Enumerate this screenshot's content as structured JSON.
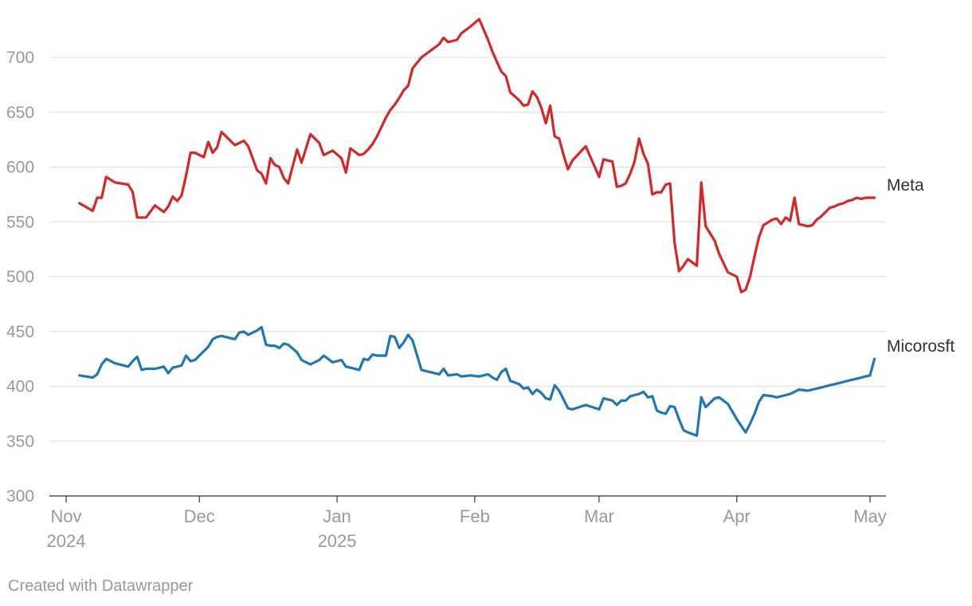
{
  "chart_data": {
    "type": "line",
    "title": "",
    "xlabel": "",
    "ylabel": "",
    "ylim": [
      300,
      740
    ],
    "xlim": [
      0,
      181
    ],
    "yticks": [
      700,
      650,
      600,
      550,
      500,
      450,
      400,
      350,
      300
    ],
    "xticks": [
      {
        "x": 0,
        "label": "Nov",
        "sublabel": "2024"
      },
      {
        "x": 30,
        "label": "Dec",
        "sublabel": ""
      },
      {
        "x": 61,
        "label": "Jan",
        "sublabel": "2025"
      },
      {
        "x": 92,
        "label": "Feb",
        "sublabel": ""
      },
      {
        "x": 120,
        "label": "Mar",
        "sublabel": ""
      },
      {
        "x": 151,
        "label": "Apr",
        "sublabel": ""
      },
      {
        "x": 181,
        "label": "May",
        "sublabel": ""
      }
    ],
    "grid": true,
    "legend": "direct labels at right end of lines",
    "series": [
      {
        "name": "Meta",
        "color": "#d62728",
        "x": [
          3,
          6,
          7,
          8,
          9,
          11,
          14,
          15,
          16,
          17,
          18,
          20,
          22,
          23,
          24,
          25,
          26,
          27,
          28,
          29,
          31,
          32,
          33,
          34,
          35,
          38,
          39,
          40,
          41,
          43,
          44,
          45,
          46,
          47,
          48,
          49,
          50,
          52,
          53,
          55,
          57,
          58,
          60,
          62,
          63,
          64,
          66,
          67,
          68,
          69,
          70,
          72,
          73,
          74,
          75,
          76,
          77,
          78,
          80,
          84,
          85,
          86,
          88,
          89,
          91,
          93,
          95,
          96,
          97,
          98,
          99,
          100,
          102,
          103,
          104,
          105,
          106,
          107,
          108,
          109,
          110,
          111,
          112,
          113,
          114,
          117,
          120,
          121,
          122,
          123,
          124,
          125,
          126,
          127,
          128,
          129,
          130,
          131,
          132,
          133,
          134,
          135,
          136,
          137,
          138,
          139,
          140,
          142,
          143,
          144,
          146,
          147,
          149,
          151,
          152,
          153,
          154,
          155,
          156,
          157,
          159,
          160,
          161,
          162,
          163,
          164,
          165,
          167,
          168,
          169,
          170,
          171,
          172,
          173,
          174,
          175,
          176,
          177,
          178,
          179,
          180,
          181,
          182
        ],
        "values": [
          567,
          560,
          572,
          572,
          591,
          586,
          584,
          577,
          554,
          554,
          554,
          565,
          559,
          564,
          573,
          569,
          574,
          592,
          613,
          613,
          609,
          623,
          613,
          618,
          632,
          620,
          622,
          624,
          619,
          597,
          594,
          585,
          608,
          602,
          600,
          590,
          585,
          616,
          604,
          630,
          622,
          611,
          615,
          608,
          595,
          617,
          611,
          612,
          616,
          621,
          628,
          645,
          652,
          657,
          663,
          670,
          674,
          690,
          700,
          712,
          718,
          714,
          716,
          722,
          728,
          735,
          716,
          705,
          696,
          687,
          683,
          668,
          661,
          656,
          657,
          669,
          664,
          654,
          640,
          656,
          628,
          626,
          611,
          598,
          606,
          619,
          591,
          607,
          606,
          605,
          582,
          583,
          585,
          594,
          605,
          626,
          612,
          603,
          575,
          577,
          577,
          584,
          585,
          531,
          505,
          510,
          516,
          510,
          586,
          546,
          533,
          521,
          504,
          500,
          486,
          488,
          500,
          519,
          536,
          547,
          552,
          553,
          548,
          554,
          551,
          572,
          548,
          546,
          547,
          552,
          555,
          559,
          563,
          564,
          566,
          567,
          569,
          570,
          572,
          571,
          572,
          572,
          572
        ]
      },
      {
        "name": "Micorosft",
        "color": "#1f77b4",
        "x": [
          3,
          6,
          7,
          8,
          9,
          11,
          14,
          15,
          16,
          17,
          18,
          20,
          22,
          23,
          24,
          25,
          26,
          27,
          28,
          29,
          31,
          32,
          33,
          34,
          35,
          38,
          39,
          40,
          41,
          43,
          44,
          45,
          46,
          47,
          48,
          49,
          50,
          52,
          53,
          55,
          57,
          58,
          60,
          62,
          63,
          64,
          66,
          67,
          68,
          69,
          70,
          72,
          73,
          74,
          75,
          76,
          77,
          78,
          80,
          84,
          85,
          86,
          88,
          89,
          91,
          93,
          95,
          96,
          97,
          98,
          99,
          100,
          102,
          103,
          104,
          105,
          106,
          107,
          108,
          109,
          110,
          111,
          112,
          113,
          114,
          117,
          120,
          121,
          122,
          123,
          124,
          125,
          126,
          127,
          128,
          129,
          130,
          131,
          132,
          133,
          134,
          135,
          136,
          137,
          138,
          139,
          140,
          142,
          143,
          144,
          146,
          147,
          149,
          151,
          152,
          153,
          154,
          155,
          156,
          157,
          159,
          160,
          161,
          162,
          163,
          164,
          165,
          167,
          168,
          169,
          170,
          171,
          172,
          173,
          174,
          175,
          176,
          177,
          178,
          179,
          180,
          181,
          182
        ],
        "values": [
          410,
          408,
          411,
          420,
          425,
          421,
          418,
          423,
          427,
          415,
          416,
          416,
          418,
          412,
          417,
          418,
          419,
          428,
          423,
          424,
          432,
          436,
          443,
          445,
          446,
          443,
          449,
          450,
          447,
          451,
          454,
          438,
          437,
          437,
          435,
          439,
          438,
          431,
          424,
          420,
          424,
          428,
          422,
          424,
          418,
          417,
          415,
          425,
          424,
          429,
          428,
          428,
          446,
          445,
          435,
          440,
          447,
          442,
          415,
          411,
          416,
          410,
          411,
          409,
          410,
          409,
          411,
          408,
          406,
          413,
          416,
          405,
          402,
          398,
          399,
          393,
          397,
          394,
          389,
          388,
          401,
          396,
          388,
          380,
          379,
          383,
          379,
          389,
          388,
          387,
          383,
          387,
          387,
          391,
          392,
          393,
          395,
          390,
          391,
          378,
          376,
          375,
          382,
          381,
          370,
          360,
          358,
          355,
          390,
          381,
          389,
          390,
          384,
          370,
          364,
          358,
          366,
          375,
          386,
          392,
          391,
          390,
          391,
          392,
          393,
          395,
          397,
          396,
          397,
          398,
          399,
          400,
          401,
          402,
          403,
          404,
          405,
          406,
          407,
          408,
          409,
          410,
          425
        ]
      }
    ]
  },
  "credit": "Created with Datawrapper"
}
